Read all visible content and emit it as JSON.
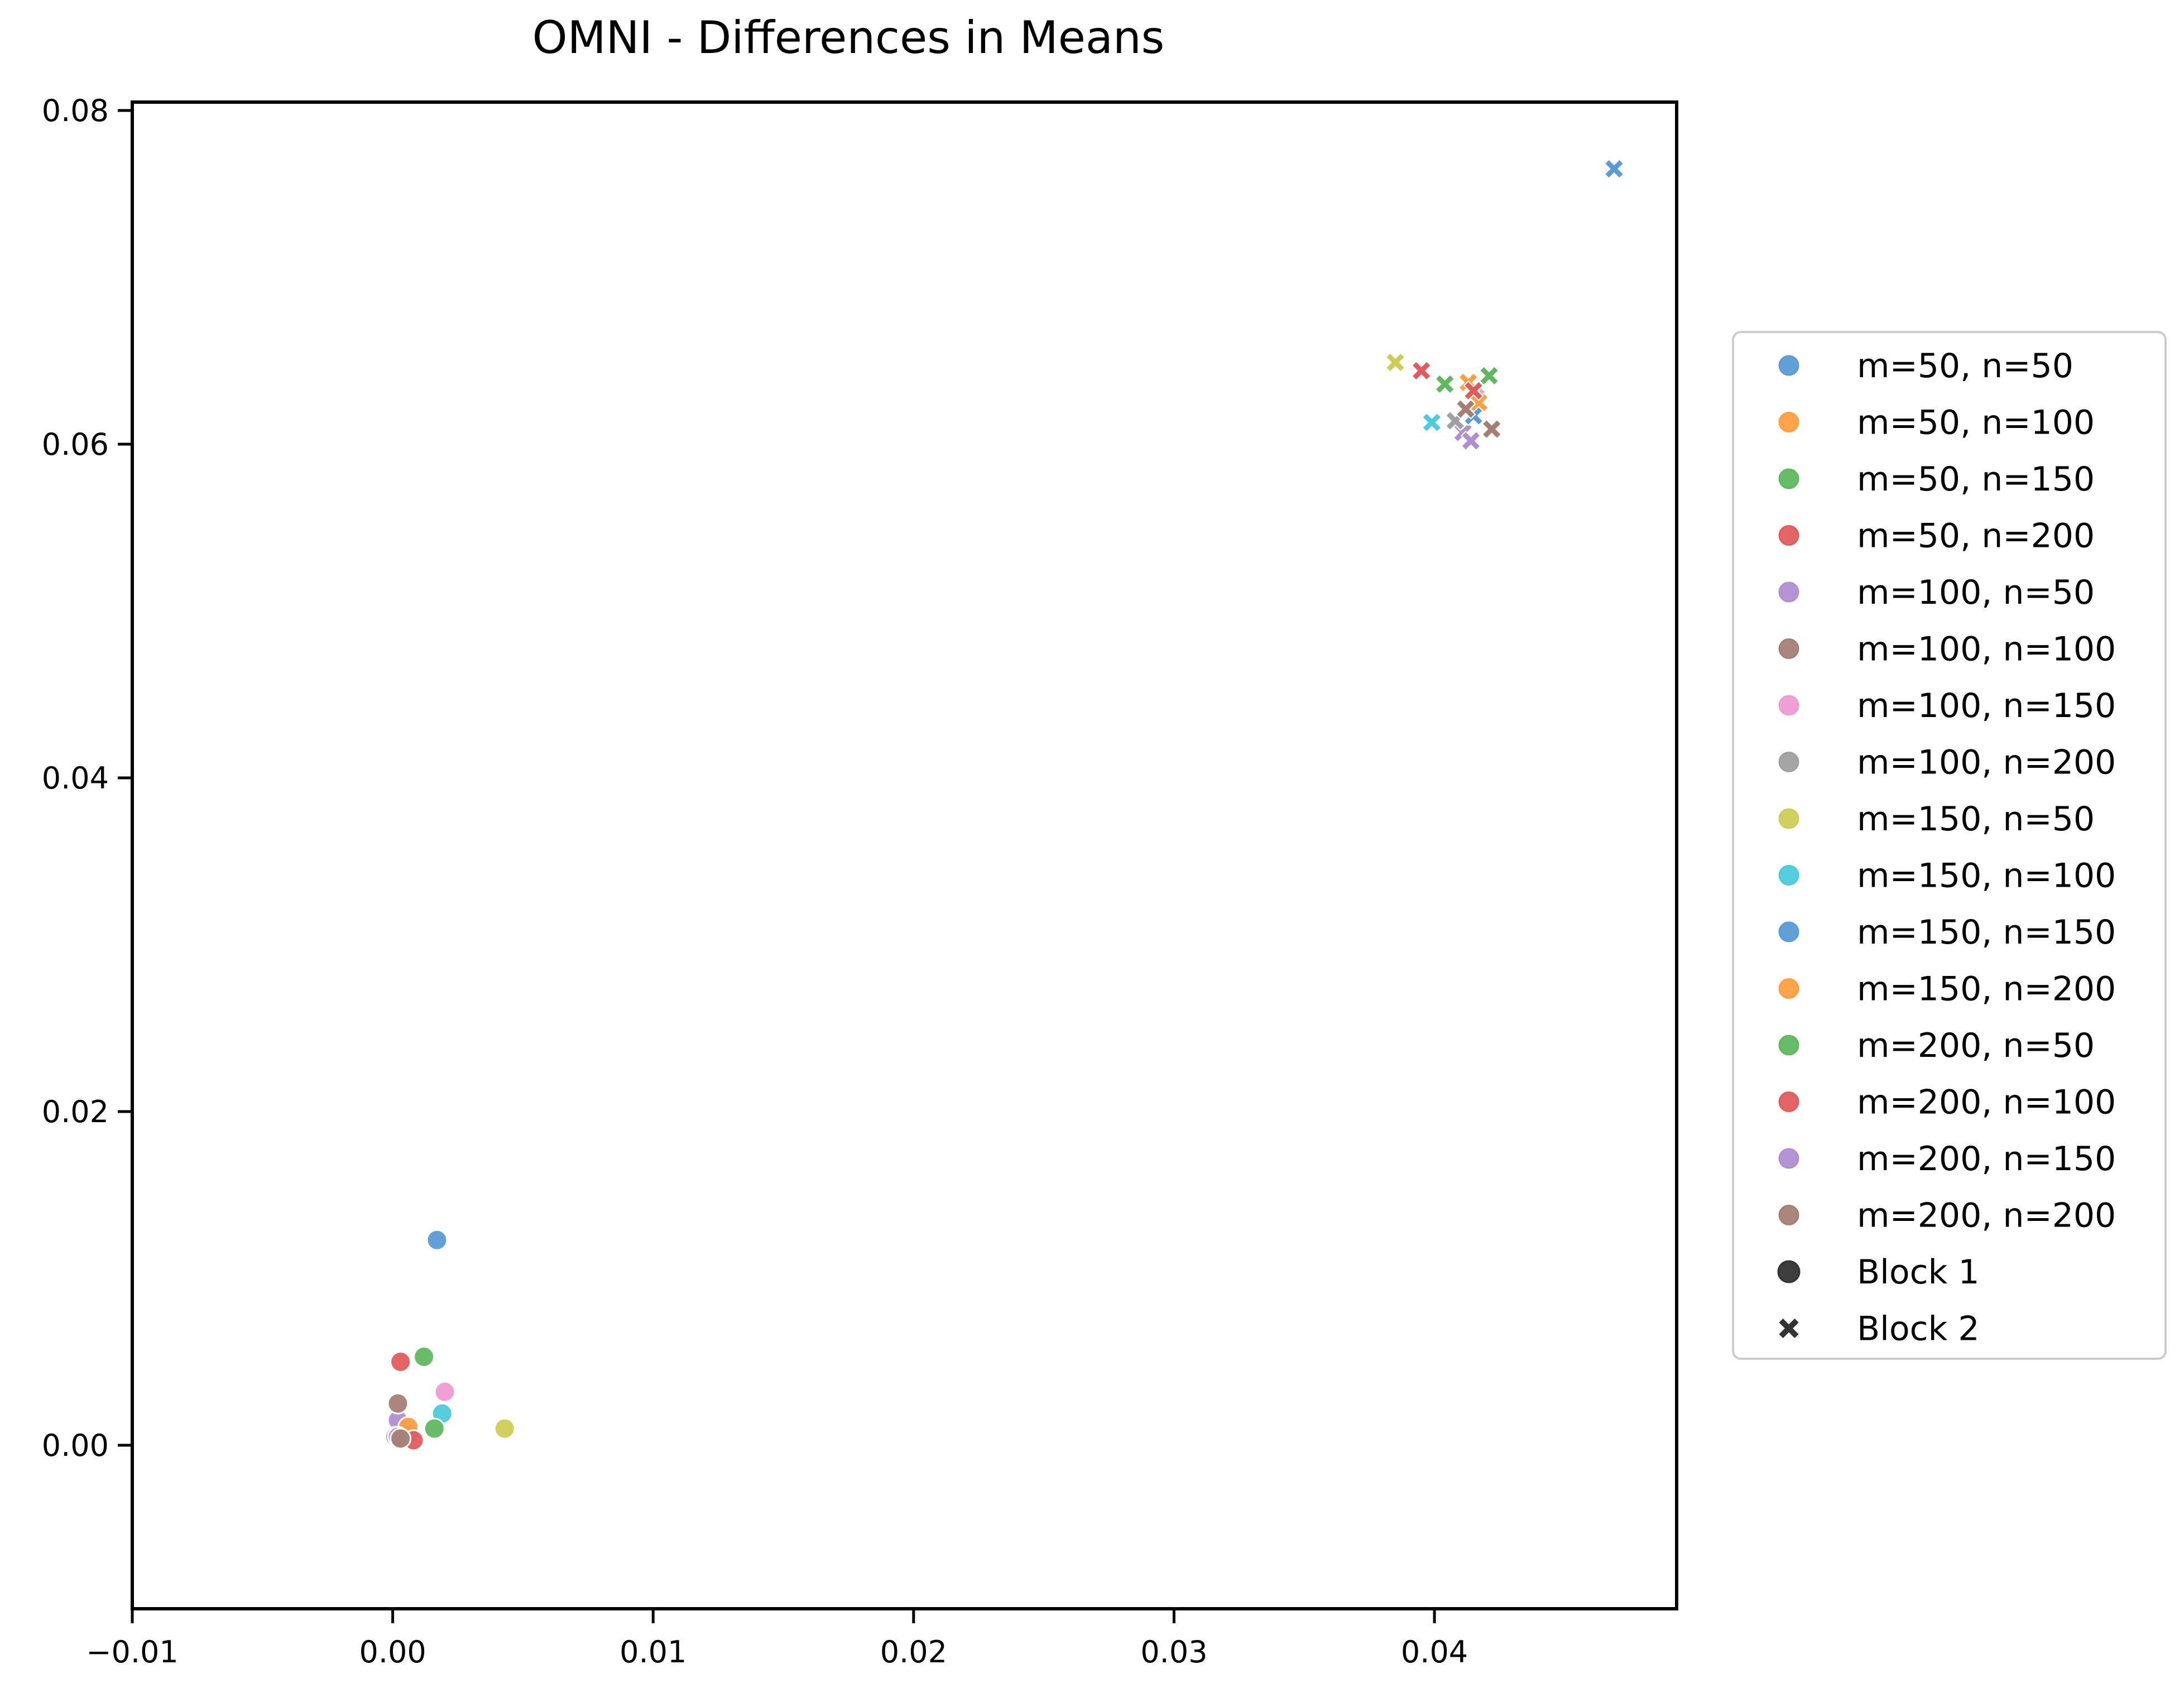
{
  "chart_data": {
    "type": "scatter",
    "title": "OMNI - Differences in Means",
    "xlabel": "",
    "ylabel": "",
    "xlim": [
      -0.01,
      0.0493
    ],
    "ylim": [
      -0.0098,
      0.0805
    ],
    "xticks": [
      -0.01,
      0.0,
      0.01,
      0.02,
      0.03,
      0.04
    ],
    "xtick_labels": [
      "−0.01",
      "0.00",
      "0.01",
      "0.02",
      "0.03",
      "0.04"
    ],
    "yticks": [
      0.0,
      0.02,
      0.04,
      0.06,
      0.08
    ],
    "ytick_labels": [
      "0.00",
      "0.02",
      "0.04",
      "0.06",
      "0.08"
    ],
    "grid": false,
    "legend_position": "outside-right",
    "marker_styles": [
      {
        "name": "Block 1",
        "marker": "circle"
      },
      {
        "name": "Block 2",
        "marker": "x"
      }
    ],
    "series": [
      {
        "name": "m=50, n=50",
        "color": "#5b9bd5",
        "points": [
          {
            "x": 0.0017,
            "y": 0.0123,
            "block": 1
          },
          {
            "x": 0.0469,
            "y": 0.0765,
            "block": 2
          }
        ]
      },
      {
        "name": "m=50, n=100",
        "color": "#ff9f40",
        "points": [
          {
            "x": 0.0005,
            "y": 0.001,
            "block": 1
          },
          {
            "x": 0.0413,
            "y": 0.0637,
            "block": 2
          }
        ]
      },
      {
        "name": "m=50, n=150",
        "color": "#5fb85f",
        "points": [
          {
            "x": 0.0012,
            "y": 0.0053,
            "block": 1
          },
          {
            "x": 0.0404,
            "y": 0.0636,
            "block": 2
          }
        ]
      },
      {
        "name": "m=50, n=200",
        "color": "#e05c5c",
        "points": [
          {
            "x": 0.0003,
            "y": 0.005,
            "block": 1
          },
          {
            "x": 0.0395,
            "y": 0.0644,
            "block": 2
          }
        ]
      },
      {
        "name": "m=100, n=50",
        "color": "#b08ed0",
        "points": [
          {
            "x": 0.0002,
            "y": 0.0015,
            "block": 1
          },
          {
            "x": 0.0411,
            "y": 0.0607,
            "block": 2
          }
        ]
      },
      {
        "name": "m=100, n=100",
        "color": "#a67f74",
        "points": [
          {
            "x": 0.0002,
            "y": 0.0025,
            "block": 1
          },
          {
            "x": 0.0422,
            "y": 0.0609,
            "block": 2
          }
        ]
      },
      {
        "name": "m=100, n=150",
        "color": "#ee9bd2",
        "points": [
          {
            "x": 0.002,
            "y": 0.0032,
            "block": 1
          },
          {
            "x": 0.0416,
            "y": 0.0628,
            "block": 2
          }
        ]
      },
      {
        "name": "m=100, n=200",
        "color": "#a0a0a0",
        "points": [
          {
            "x": 0.0001,
            "y": 0.0005,
            "block": 1
          },
          {
            "x": 0.0408,
            "y": 0.0614,
            "block": 2
          }
        ]
      },
      {
        "name": "m=150, n=50",
        "color": "#cfcc55",
        "points": [
          {
            "x": 0.0043,
            "y": 0.001,
            "block": 1
          },
          {
            "x": 0.0385,
            "y": 0.0649,
            "block": 2
          }
        ]
      },
      {
        "name": "m=150, n=100",
        "color": "#4dcadb",
        "points": [
          {
            "x": 0.0019,
            "y": 0.0019,
            "block": 1
          },
          {
            "x": 0.0399,
            "y": 0.0613,
            "block": 2
          }
        ]
      },
      {
        "name": "m=150, n=150",
        "color": "#5b9bd5",
        "points": [
          {
            "x": 0.0006,
            "y": 0.0007,
            "block": 1
          },
          {
            "x": 0.0415,
            "y": 0.0617,
            "block": 2
          }
        ]
      },
      {
        "name": "m=150, n=200",
        "color": "#ff9f40",
        "points": [
          {
            "x": 0.0006,
            "y": 0.0011,
            "block": 1
          },
          {
            "x": 0.0417,
            "y": 0.0625,
            "block": 2
          }
        ]
      },
      {
        "name": "m=200, n=50",
        "color": "#5fb85f",
        "points": [
          {
            "x": 0.0016,
            "y": 0.001,
            "block": 1
          },
          {
            "x": 0.0421,
            "y": 0.0641,
            "block": 2
          }
        ]
      },
      {
        "name": "m=200, n=100",
        "color": "#e05c5c",
        "points": [
          {
            "x": 0.0008,
            "y": 0.0003,
            "block": 1
          },
          {
            "x": 0.0415,
            "y": 0.0632,
            "block": 2
          }
        ]
      },
      {
        "name": "m=200, n=150",
        "color": "#b08ed0",
        "points": [
          {
            "x": 0.0002,
            "y": 0.0005,
            "block": 1
          },
          {
            "x": 0.0414,
            "y": 0.0602,
            "block": 2
          }
        ]
      },
      {
        "name": "m=200, n=200",
        "color": "#a67f74",
        "points": [
          {
            "x": 0.0003,
            "y": 0.0004,
            "block": 1
          },
          {
            "x": 0.0412,
            "y": 0.0621,
            "block": 2
          }
        ]
      }
    ]
  }
}
